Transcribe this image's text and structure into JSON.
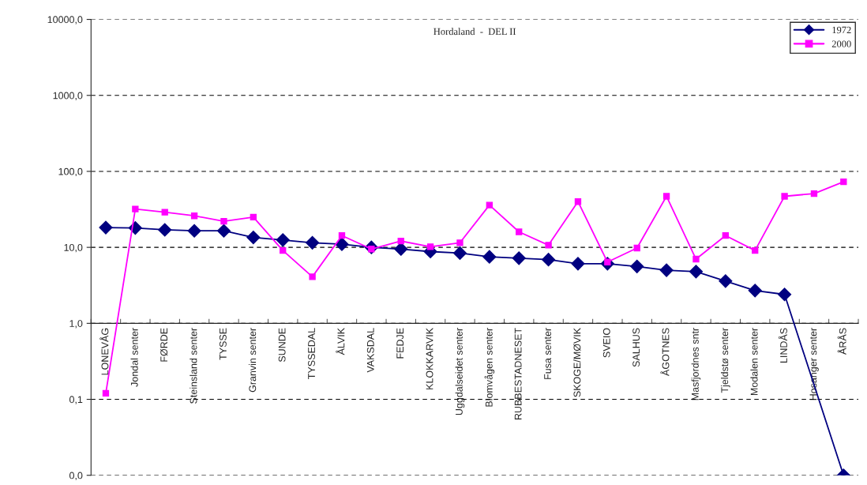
{
  "chart_data": {
    "type": "line",
    "title": "Hordaland  -  DEL II",
    "categories": [
      "LONEVÅG",
      "Jondal senter",
      "FØRDE",
      "Steinsland senter",
      "TYSSE",
      "Granvin senter",
      "SUNDE",
      "TYSSEDAL",
      "ÅLVIK",
      "VAKSDAL",
      "FEDJE",
      "KLOKKARVIK",
      "Uggdalseidet senter",
      "Blomvågen senter",
      "RUBBESTADNESET",
      "Fusa senter",
      "SKOGE/MØVIK",
      "SVEIO",
      "SALHUS",
      "ÅGOTNES",
      "Masfjordnes sntr",
      "Tjeldstø senter",
      "Modalen senter",
      "LINDÅS",
      "Hosanger senter",
      "ÅRÅS"
    ],
    "series": [
      {
        "name": "1972",
        "color": "#000080",
        "marker": "diamond",
        "values": [
          18.2,
          18,
          17,
          16.5,
          16.5,
          13.5,
          12.5,
          11.5,
          11,
          10,
          9.5,
          8.8,
          8.4,
          7.5,
          7.2,
          6.9,
          6.1,
          6.1,
          5.6,
          5.0,
          4.8,
          3.6,
          2.7,
          2.4,
          null,
          0.01
        ]
      },
      {
        "name": "2000",
        "color": "#ff00ff",
        "marker": "square",
        "values": [
          0.12,
          32,
          29,
          26,
          22,
          25,
          9.1,
          4.1,
          14.3,
          9.5,
          12.1,
          10.2,
          11.5,
          36,
          16,
          10.7,
          40,
          6.4,
          9.8,
          47,
          7,
          14.3,
          9.1,
          47,
          51,
          73
        ]
      }
    ],
    "log": "y",
    "ylim": [
      0.01,
      10000
    ],
    "yticks": [
      {
        "value": 0.01,
        "label": "0,0"
      },
      {
        "value": 0.1,
        "label": "0,1"
      },
      {
        "value": 1,
        "label": "1,0"
      },
      {
        "value": 10,
        "label": "10,0"
      },
      {
        "value": 100,
        "label": "100,0"
      },
      {
        "value": 1000,
        "label": "1000,0"
      },
      {
        "value": 10000,
        "label": "10000,0"
      }
    ],
    "grid": "y",
    "legend": "top right",
    "line_style": "solid"
  }
}
